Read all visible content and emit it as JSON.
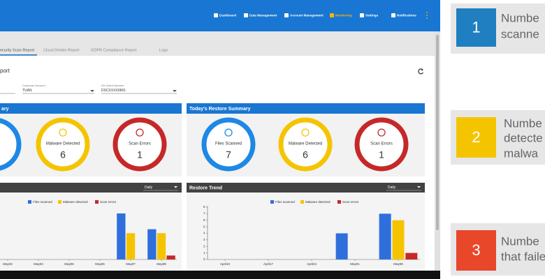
{
  "nav": {
    "items": [
      "Dashboard",
      "Data Management",
      "Account Management",
      "Monitoring",
      "Settings",
      "Notifications"
    ],
    "active": 3
  },
  "tabs": {
    "items": [
      "ecurity Scan Report",
      "Cloud Details Report",
      "GDPR Compliance Report",
      "Logs"
    ],
    "active": 0
  },
  "report": {
    "title": "port",
    "fields": [
      {
        "label": "Customer Account",
        "value": "TUAN"
      },
      {
        "label": "DS Client Number",
        "value": "DSCXXXX0661"
      }
    ]
  },
  "scan_summary": {
    "title": "ary",
    "items": [
      {
        "label": "Malware Detected",
        "value": 6,
        "color": "#f5c400"
      },
      {
        "label": "Scan Errors",
        "value": 1,
        "color": "#c62828"
      }
    ]
  },
  "restore_summary": {
    "title": "Today's Restore Summary",
    "items": [
      {
        "label": "Files Scanned",
        "value": 7,
        "color": "#1e88e5"
      },
      {
        "label": "Malware Detected",
        "value": 6,
        "color": "#f5c400"
      },
      {
        "label": "Scan Errors",
        "value": 1,
        "color": "#c62828"
      }
    ]
  },
  "chart_data": [
    {
      "type": "bar",
      "period": "Daily",
      "categories": [
        "May03",
        "May04",
        "May05",
        "May06",
        "May07",
        "May08"
      ],
      "series": [
        {
          "name": "Files scanned",
          "color": "#2f6fdc",
          "values": [
            0,
            0,
            0,
            0,
            7,
            4.6
          ]
        },
        {
          "name": "Malware detected",
          "color": "#f5c400",
          "values": [
            0,
            0,
            0,
            0,
            4,
            4
          ]
        },
        {
          "name": "Scan errors",
          "color": "#c62828",
          "values": [
            0,
            0,
            0,
            0,
            0,
            0.6
          ]
        }
      ],
      "ylim": [
        0,
        8
      ]
    },
    {
      "type": "bar",
      "title": "Restore Trend",
      "period": "Daily",
      "categories": [
        "April10",
        "April17",
        "April24",
        "May01",
        "May08"
      ],
      "series": [
        {
          "name": "Files scanned",
          "color": "#2f6fdc",
          "values": [
            0,
            0,
            0,
            4,
            7
          ]
        },
        {
          "name": "Malware detected",
          "color": "#f5c400",
          "values": [
            0,
            0,
            0,
            0,
            6
          ]
        },
        {
          "name": "Scan errors",
          "color": "#c62828",
          "values": [
            0,
            0,
            0,
            0,
            1
          ]
        }
      ],
      "ylim": [
        0,
        8
      ],
      "yticks": [
        0,
        1,
        2,
        3,
        4,
        5,
        6,
        7,
        8
      ]
    }
  ],
  "cards": [
    {
      "number": 1,
      "lines": [
        "Numbe",
        "scanne"
      ],
      "color": "#1f7fc0"
    },
    {
      "number": 2,
      "lines": [
        "Numbe",
        "detecte",
        "malwa"
      ],
      "color": "#f5c400"
    },
    {
      "number": 3,
      "lines": [
        "Numbe",
        "that faile"
      ],
      "color": "#e8472a"
    }
  ]
}
